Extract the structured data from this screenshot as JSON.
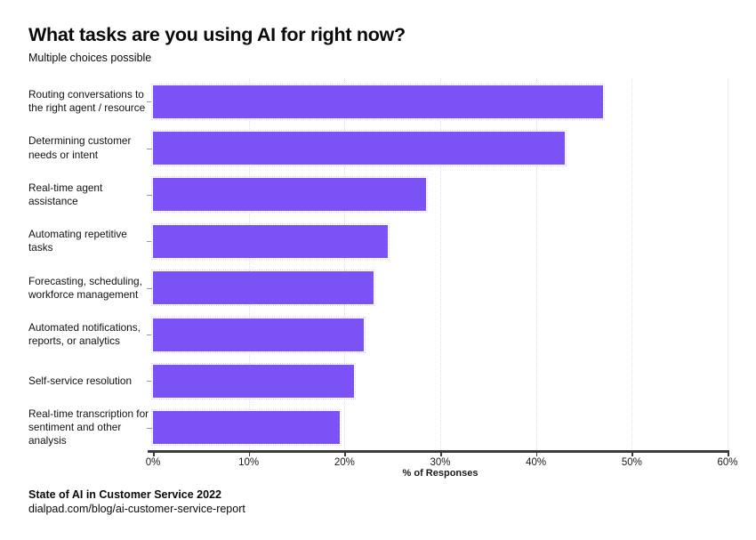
{
  "title": "What tasks are you using AI for right now?",
  "subtitle": "Multiple choices possible",
  "chart_data": {
    "type": "bar",
    "orientation": "horizontal",
    "title": "What tasks are you using AI for right now?",
    "subtitle": "Multiple choices possible",
    "categories": [
      "Routing conversations to the right agent / resource",
      "Determining customer needs or intent",
      "Real-time agent assistance",
      "Automating repetitive tasks",
      "Forecasting, scheduling, workforce management",
      "Automated notifications, reports, or analytics",
      "Self-service resolution",
      "Real-time transcription for sentiment and other analysis"
    ],
    "values": [
      47,
      43,
      28.5,
      24.5,
      23,
      22,
      21,
      19.5
    ],
    "xlabel": "% of Responses",
    "ylabel": "",
    "xlim": [
      0,
      60
    ],
    "xtick_labels": [
      "0%",
      "10%",
      "20%",
      "30%",
      "40%",
      "50%",
      "60%"
    ],
    "grid": "vertical-dotted",
    "legend": "none",
    "bar_color": "#7B52F5"
  },
  "footer": {
    "source_bold": "State of AI in Customer Service 2022",
    "source_link": "dialpad.com/blog/ai-customer-service-report"
  }
}
